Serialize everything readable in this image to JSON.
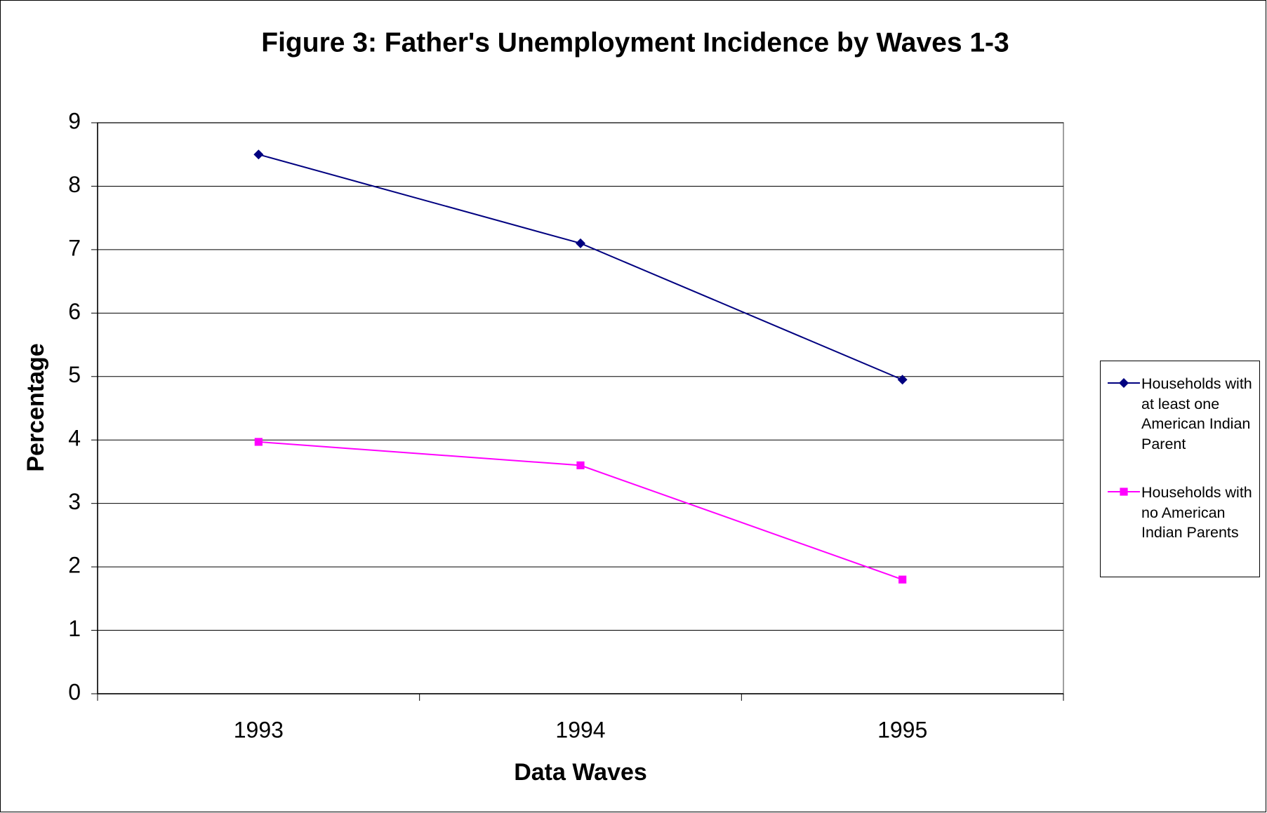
{
  "chart_data": {
    "type": "line",
    "title": "Figure 3: Father's Unemployment Incidence by Waves 1-3",
    "x_label": "Data Waves",
    "y_label": "Percentage",
    "categories": [
      "1993",
      "1994",
      "1995"
    ],
    "series": [
      {
        "name": "Households with at least one American Indian Parent",
        "color": "#000080",
        "marker": "diamond",
        "values": [
          8.5,
          7.1,
          4.95
        ]
      },
      {
        "name": "Households with no American Indian Parents",
        "color": "#ff00ff",
        "marker": "square",
        "values": [
          3.97,
          3.6,
          1.8
        ]
      }
    ],
    "ylim": [
      0,
      9
    ],
    "yticks": [
      0,
      1,
      2,
      3,
      4,
      5,
      6,
      7,
      8,
      9
    ],
    "grid": true,
    "legend": "right"
  }
}
